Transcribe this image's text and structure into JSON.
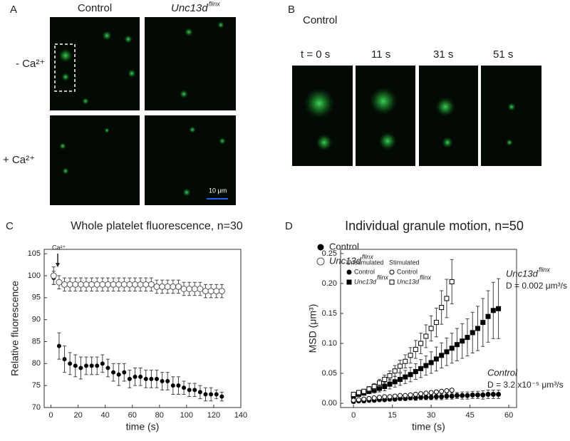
{
  "panels": {
    "a": {
      "label": "A",
      "col1": "Control",
      "col2": "Unc13d",
      "col2_sup": "flinx",
      "row1": "- Ca²⁺",
      "row2": "+ Ca²⁺",
      "scale": "10 μm"
    },
    "b": {
      "label": "B",
      "title": "Control",
      "frames": [
        "t = 0 s",
        "11 s",
        "31 s",
        "51 s"
      ]
    },
    "c": {
      "label": "C"
    },
    "d": {
      "label": "D"
    }
  },
  "chart_data": [
    {
      "type": "scatter",
      "title": "Whole platelet fluorescence, n=30",
      "xlabel": "time (s)",
      "ylabel": "Relative fluorescence",
      "annotation": "Ca²⁺",
      "annotation_x": 5,
      "xlim": [
        -5,
        140
      ],
      "xticks": [
        0,
        20,
        40,
        60,
        80,
        100,
        120,
        140
      ],
      "ylim": [
        70,
        106
      ],
      "yticks": [
        70,
        75,
        80,
        85,
        90,
        95,
        100,
        105
      ],
      "legend": "top-right",
      "x": [
        2,
        6,
        10,
        14,
        18,
        22,
        26,
        30,
        34,
        38,
        42,
        46,
        50,
        54,
        58,
        62,
        66,
        70,
        74,
        78,
        82,
        86,
        90,
        94,
        98,
        102,
        106,
        110,
        114,
        118,
        122,
        126
      ],
      "series": [
        {
          "name": "Control",
          "color": "#000000",
          "marker": "circle",
          "filled": true,
          "values": [
            99.5,
            84,
            81,
            80,
            79.5,
            79,
            79.5,
            79.5,
            79.5,
            80,
            79,
            78,
            77.5,
            78,
            76.5,
            77,
            77,
            76.5,
            76.5,
            76.5,
            76,
            76,
            75,
            75,
            74.5,
            74,
            74,
            73.5,
            73,
            73,
            73,
            72.5
          ],
          "errors": [
            1.5,
            3,
            3,
            2.5,
            2.5,
            2.5,
            2,
            2,
            2,
            2,
            2,
            2,
            2.5,
            2,
            2,
            2,
            2,
            2,
            2,
            2,
            2,
            2,
            2,
            2,
            1.5,
            1.5,
            1.5,
            1.5,
            1.5,
            1.5,
            1,
            1
          ]
        },
        {
          "name": "Unc13d",
          "name_sup": "flinx",
          "color": "#555555",
          "marker": "circle",
          "filled": false,
          "values": [
            100,
            98.5,
            98,
            98,
            98,
            98,
            98,
            98,
            98,
            98,
            98,
            98,
            98,
            98,
            98,
            98,
            98,
            98,
            98,
            97.5,
            97.5,
            97.5,
            97.5,
            97.5,
            97,
            97,
            97,
            97,
            96.5,
            96.5,
            96.5,
            96.5
          ],
          "errors": [
            2,
            1.5,
            1.5,
            1.5,
            1.5,
            1.5,
            1.5,
            1.5,
            1.5,
            1.5,
            1.5,
            1.5,
            1.5,
            1.5,
            1.5,
            1.5,
            1.5,
            1.5,
            1.5,
            1.5,
            1.5,
            1.5,
            1.5,
            1.5,
            1.5,
            1.5,
            1.5,
            1.5,
            1.5,
            1.5,
            1.5,
            1.5
          ]
        }
      ]
    },
    {
      "type": "scatter",
      "title": "Individual granule motion, n=50",
      "xlabel": "time (s)",
      "ylabel": "MSD (μm³)",
      "xlim": [
        -5,
        63
      ],
      "xticks": [
        0,
        15,
        30,
        45,
        60
      ],
      "ylim": [
        -0.007,
        0.257
      ],
      "yticks": [
        {
          "value": 0,
          "label": "0.00"
        },
        {
          "value": 0.05,
          "label": "0.05"
        },
        {
          "value": 0.1,
          "label": "0.10"
        },
        {
          "value": 0.15,
          "label": "0.15"
        },
        {
          "value": 0.2,
          "label": "0.20"
        },
        {
          "value": 0.25,
          "label": "0.25"
        }
      ],
      "legend": "top-left",
      "legend_titles": [
        "Unstimulated",
        "Stimulated"
      ],
      "annotations": [
        {
          "title": "Unc13d",
          "title_sup": "flinx",
          "text": "D = 0.002 μm³/s"
        },
        {
          "title": "Control",
          "text": "D = 3.2 x10⁻⁵ μm³/s"
        }
      ],
      "series": [
        {
          "name": "Control",
          "color": "#000000",
          "marker": "circle",
          "filled": true,
          "x": [
            0,
            2,
            4,
            6,
            8,
            10,
            12,
            14,
            16,
            18,
            20,
            22,
            24,
            26,
            28,
            30,
            32,
            34,
            36,
            38,
            40,
            42,
            44,
            46,
            48,
            50,
            52,
            54,
            56
          ],
          "values": [
            0.003,
            0.004,
            0.004,
            0.005,
            0.005,
            0.006,
            0.006,
            0.007,
            0.007,
            0.008,
            0.008,
            0.009,
            0.009,
            0.01,
            0.01,
            0.01,
            0.011,
            0.011,
            0.012,
            0.012,
            0.013,
            0.013,
            0.013,
            0.014,
            0.014,
            0.014,
            0.015,
            0.015,
            0.015
          ],
          "errors": [
            0.001,
            0.001,
            0.001,
            0.002,
            0.002,
            0.002,
            0.002,
            0.003,
            0.003,
            0.003,
            0.003,
            0.003,
            0.004,
            0.004,
            0.004,
            0.004,
            0.005,
            0.005,
            0.005,
            0.005,
            0.005,
            0.006,
            0.006,
            0.006,
            0.006,
            0.007,
            0.007,
            0.007,
            0.007
          ]
        },
        {
          "name": "Unc13d",
          "name_sup": "flinx",
          "color": "#000000",
          "marker": "square",
          "filled": true,
          "x": [
            0,
            2,
            4,
            6,
            8,
            10,
            12,
            14,
            16,
            18,
            20,
            22,
            24,
            26,
            28,
            30,
            32,
            34,
            36,
            38,
            40,
            42,
            44,
            46,
            48,
            50,
            52,
            54,
            56
          ],
          "values": [
            0.012,
            0.015,
            0.017,
            0.02,
            0.022,
            0.025,
            0.028,
            0.032,
            0.036,
            0.04,
            0.044,
            0.048,
            0.053,
            0.058,
            0.063,
            0.068,
            0.074,
            0.08,
            0.086,
            0.092,
            0.098,
            0.104,
            0.11,
            0.118,
            0.125,
            0.135,
            0.145,
            0.155,
            0.158
          ],
          "errors": [
            0.002,
            0.003,
            0.003,
            0.004,
            0.005,
            0.006,
            0.007,
            0.008,
            0.009,
            0.01,
            0.011,
            0.012,
            0.013,
            0.015,
            0.016,
            0.018,
            0.02,
            0.021,
            0.023,
            0.025,
            0.027,
            0.029,
            0.031,
            0.034,
            0.037,
            0.04,
            0.043,
            0.047,
            0.05
          ]
        },
        {
          "name": "Control",
          "color": "#000000",
          "marker": "circle",
          "filled": false,
          "x": [
            0,
            2,
            4,
            6,
            8,
            10,
            12,
            14,
            16,
            18,
            20,
            22,
            24,
            26,
            28,
            30,
            32,
            34,
            36,
            38
          ],
          "values": [
            0.005,
            0.006,
            0.007,
            0.008,
            0.009,
            0.01,
            0.011,
            0.011,
            0.012,
            0.013,
            0.013,
            0.014,
            0.015,
            0.016,
            0.017,
            0.018,
            0.019,
            0.02,
            0.021,
            0.022
          ]
        },
        {
          "name": "Unc13d",
          "name_sup": "flinx",
          "color": "#000000",
          "marker": "square",
          "filled": false,
          "x": [
            0,
            2,
            4,
            6,
            8,
            10,
            12,
            14,
            16,
            18,
            20,
            22,
            24,
            26,
            28,
            30,
            32,
            34,
            36,
            38
          ],
          "values": [
            0.015,
            0.018,
            0.02,
            0.024,
            0.028,
            0.034,
            0.04,
            0.046,
            0.054,
            0.062,
            0.07,
            0.08,
            0.09,
            0.1,
            0.112,
            0.125,
            0.135,
            0.16,
            0.175,
            0.203
          ],
          "errors": [
            0.002,
            0.003,
            0.003,
            0.004,
            0.005,
            0.006,
            0.007,
            0.008,
            0.009,
            0.01,
            0.011,
            0.013,
            0.015,
            0.017,
            0.019,
            0.021,
            0.024,
            0.028,
            0.032,
            0.037
          ]
        }
      ]
    }
  ]
}
